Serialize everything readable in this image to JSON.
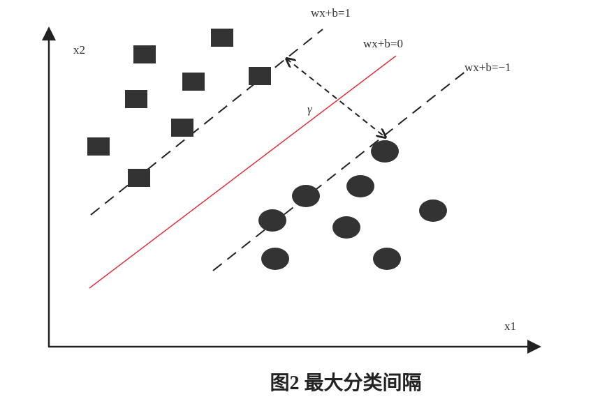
{
  "axes": {
    "x": "x1",
    "y": "x2"
  },
  "lines": [
    {
      "label": "wx+b=1"
    },
    {
      "label": "wx+b=0"
    },
    {
      "label": "wx+b=−1"
    }
  ],
  "margin_label": "γ",
  "caption": "图2 最大分类间隔"
}
